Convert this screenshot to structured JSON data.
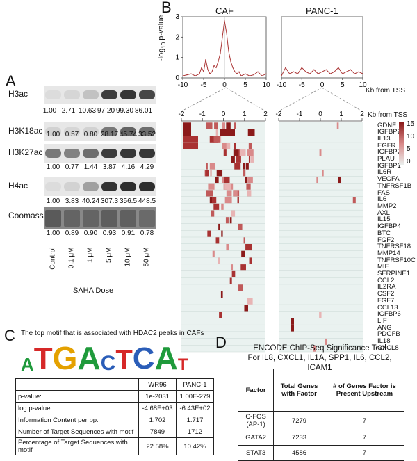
{
  "panelA": {
    "letter": "A",
    "blots": [
      {
        "label": "H3ac",
        "values": [
          "1.00",
          "2.71",
          "10.63",
          "97.20",
          "99.30",
          "86.01"
        ],
        "intensity": [
          0.05,
          0.08,
          0.18,
          0.85,
          0.88,
          0.8
        ]
      },
      {
        "label": "H3K18ac",
        "values": [
          "1.00",
          "0.57",
          "0.80",
          "28.17",
          "45.74",
          "33.52"
        ],
        "intensity": [
          0.1,
          0.08,
          0.1,
          0.55,
          0.65,
          0.6
        ]
      },
      {
        "label": "H3K27ac",
        "values": [
          "1.00",
          "0.77",
          "1.44",
          "3.87",
          "4.16",
          "4.29"
        ],
        "intensity": [
          0.55,
          0.5,
          0.6,
          0.85,
          0.88,
          0.88
        ]
      },
      {
        "label": "H4ac",
        "values": [
          "1.00",
          "3.83",
          "40.24",
          "307.3",
          "356.5",
          "448.5"
        ],
        "intensity": [
          0.05,
          0.1,
          0.35,
          0.9,
          0.92,
          0.92
        ]
      },
      {
        "label": "Coomassie",
        "values": [
          "1.00",
          "0.89",
          "0.90",
          "0.93",
          "0.91",
          "0.78"
        ],
        "intensity": [
          0.7,
          0.65,
          0.65,
          0.68,
          0.67,
          0.62
        ]
      }
    ],
    "doses": [
      "Control",
      "0.1 μM",
      "1 μM",
      "5 μM",
      "10 μM",
      "50 μM"
    ],
    "xlabel": "SAHA Dose"
  },
  "panelB": {
    "letter": "B",
    "titles": [
      "CAF",
      "PANC-1"
    ],
    "ylabel": "-log₁₀ p-value",
    "ylabel_base": "-log",
    "ylabel_sub": "10",
    "ylabel_rest": " p-value",
    "yticks": [
      "0",
      "1",
      "2",
      "3"
    ],
    "xticks": [
      "-10",
      "-5",
      "0",
      "5",
      "10"
    ],
    "xlabel": "Kb from TSS",
    "hm_ticks": [
      "-2",
      "-1",
      "0",
      "1",
      "2"
    ],
    "hm_xlabel": "Kb from TSS",
    "colorbar_ticks": [
      "15",
      "10",
      "5",
      "0"
    ],
    "genes": [
      "GDNF",
      "IGFBP2",
      "IL13",
      "EGFR",
      "IGFBP7",
      "PLAU",
      "IGFBP1",
      "IL6R",
      "VEGFA",
      "TNFRSF1B",
      "FAS",
      "IL6",
      "MMP2",
      "AXL",
      "IL15",
      "IGFBP4",
      "BTC",
      "FGF2",
      "TNFRSF18",
      "MMP14",
      "TNFRSF10C",
      "MIF",
      "SERPINE1",
      "CCL2",
      "IL2RA",
      "CSF2",
      "FGF7",
      "CCL13",
      "IGFBP6",
      "LIF",
      "ANG",
      "PDGFB",
      "IL18",
      "CXCL8"
    ],
    "chart_data": [
      {
        "type": "line",
        "title": "CAF",
        "xlabel": "Kb from TSS",
        "ylabel": "-log10 p-value",
        "xlim": [
          -10,
          10
        ],
        "ylim": [
          0,
          3
        ],
        "x": [
          -10,
          -9,
          -8,
          -7,
          -6,
          -5.5,
          -5,
          -4.5,
          -4,
          -3.5,
          -3,
          -2.5,
          -2,
          -1.5,
          -1,
          -0.5,
          0,
          0.5,
          1,
          1.5,
          2,
          2.5,
          3,
          3.5,
          4,
          5,
          6,
          7,
          8,
          9,
          10
        ],
        "values": [
          0.1,
          0.15,
          0.2,
          0.1,
          0.2,
          0.5,
          0.3,
          0.9,
          0.4,
          0.2,
          0.3,
          0.6,
          0.5,
          0.8,
          1.2,
          2.0,
          2.8,
          2.2,
          1.3,
          0.8,
          0.5,
          0.3,
          0.2,
          0.3,
          0.1,
          0.2,
          0.1,
          0.15,
          0.3,
          0.1,
          0.2
        ]
      },
      {
        "type": "line",
        "title": "PANC-1",
        "xlabel": "Kb from TSS",
        "ylabel": "-log10 p-value",
        "xlim": [
          -10,
          10
        ],
        "ylim": [
          0,
          3
        ],
        "x": [
          -10,
          -9,
          -8,
          -7,
          -6,
          -5,
          -4,
          -3,
          -2,
          -1,
          0,
          1,
          2,
          3,
          4,
          5,
          6,
          7,
          8,
          9,
          10
        ],
        "values": [
          0.1,
          0.5,
          0.2,
          0.3,
          0.2,
          0.5,
          0.3,
          0.2,
          0.4,
          0.2,
          0.3,
          0.4,
          0.2,
          0.3,
          0.5,
          0.2,
          0.3,
          0.4,
          0.2,
          0.3,
          0.2
        ]
      }
    ]
  },
  "panelC": {
    "letter": "C",
    "caption": "The top motif that is associated with HDAC2 peaks in CAFs",
    "motif": [
      "A",
      "T",
      "G",
      "A",
      "C",
      "T",
      "C",
      "A",
      "T"
    ],
    "motif_colors": [
      "#1f9a3b",
      "#d62828",
      "#e4a100",
      "#1f9a3b",
      "#2a5db8",
      "#d62828",
      "#2a5db8",
      "#1f9a3b",
      "#d62828"
    ],
    "headers": [
      "",
      "WR96",
      "PANC-1"
    ],
    "rows": [
      [
        "p-value:",
        "1e-2031",
        "1.00E-279"
      ],
      [
        "log p-value:",
        "-4.68E+03",
        "-6.43E+02"
      ],
      [
        "Information Content per bp:",
        "1.702",
        "1.717"
      ],
      [
        "Number of Target Sequences with motif",
        "7849",
        "1712"
      ],
      [
        "Percentage of Target Sequences with motif",
        "22.58%",
        "10.42%"
      ]
    ]
  },
  "panelD": {
    "letter": "D",
    "title1": "ENCODE ChIP-Seq Significance Tool",
    "title2": "For IL8, CXCL1, IL1A, SPP1, IL6, CCL2, ICAM1",
    "headers": [
      "Factor",
      "Total Genes with Factor",
      "# of Genes Factor is Present Upstream"
    ],
    "rows": [
      [
        "C-FOS (AP-1)",
        "7279",
        "7"
      ],
      [
        "GATA2",
        "7233",
        "7"
      ],
      [
        "STAT3",
        "4586",
        "7"
      ]
    ]
  }
}
